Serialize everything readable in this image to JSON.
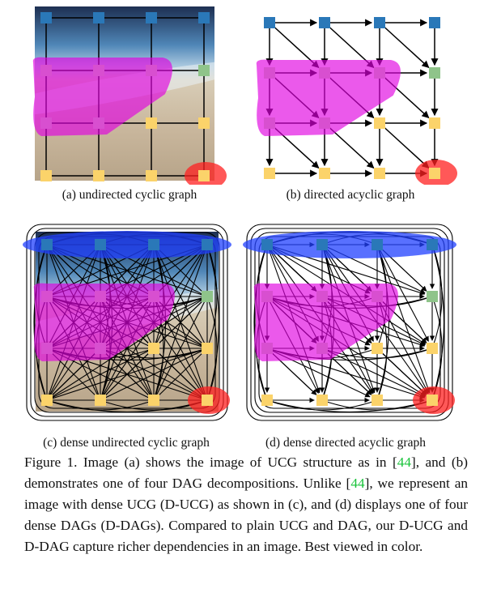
{
  "figure": {
    "panels": [
      {
        "id": "a",
        "subcaption": "(a) undirected cyclic graph",
        "directed": false,
        "dense": false,
        "photo": true
      },
      {
        "id": "b",
        "subcaption": "(b) directed acyclic graph",
        "directed": true,
        "dense": false,
        "photo": false
      },
      {
        "id": "c",
        "subcaption": "(c) dense undirected cyclic graph",
        "directed": false,
        "dense": true,
        "photo": true
      },
      {
        "id": "d",
        "subcaption": "(d) dense directed acyclic graph",
        "directed": true,
        "dense": true,
        "photo": false
      }
    ],
    "node_colors": {
      "row1": "#2a78b8",
      "row2": "#d84fd0",
      "green": "#8fc48a",
      "yellow": "#fbd36a",
      "edge": "#000000"
    },
    "region_colors": {
      "magenta": "#e000e0",
      "red": "#ff2020",
      "blue": "#2040ff"
    },
    "caption": {
      "label": "Figure 1.",
      "t1": " Image (a) shows the image of UCG structure as in [",
      "ref1": "44",
      "t2": "], and (b) demonstrates one of four DAG decompositions. Unlike [",
      "ref2": "44",
      "t3": "], we represent an image with dense UCG (D-UCG) as shown in (c), and (d) displays one of four dense DAGs (D-DAGs). Compared to plain UCG and DAG, our D-UCG and D-DAG capture richer dependencies in an image. Best viewed in color."
    }
  }
}
